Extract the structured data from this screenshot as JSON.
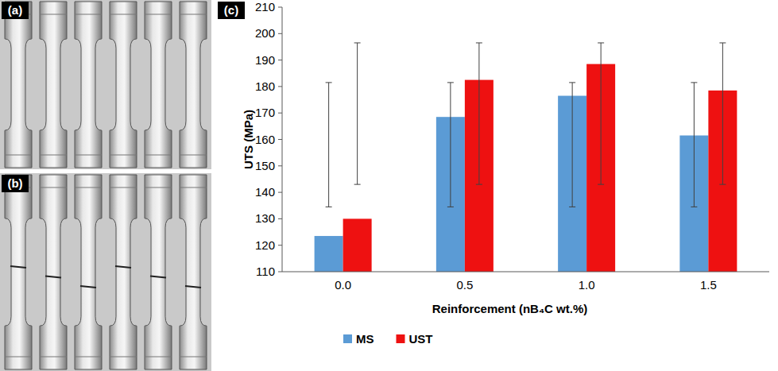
{
  "panel_labels": [
    "(a)",
    "(b)",
    "(c)"
  ],
  "chart_data": {
    "type": "bar",
    "x_label": "Reinforcement (nB₄C wt.%)",
    "y_label": "UTS (MPa)",
    "categories": [
      "0.0",
      "0.5",
      "1.0",
      "1.5"
    ],
    "series": [
      {
        "name": "MS",
        "color": "#5b9bd5",
        "values": [
          123.5,
          168.5,
          176.5,
          161.5
        ],
        "error_low": [
          134.5,
          134.5,
          134.5,
          134.5
        ],
        "error_high": [
          181.5,
          181.5,
          181.5,
          181.5
        ]
      },
      {
        "name": "UST",
        "color": "#ee1111",
        "values": [
          130,
          182.5,
          188.5,
          178.5
        ],
        "error_low": [
          143,
          143,
          143,
          143
        ],
        "error_high": [
          196.5,
          196.5,
          196.5,
          196.5
        ]
      }
    ],
    "ylim": [
      110,
      210
    ],
    "yticks": [
      110,
      120,
      130,
      140,
      150,
      160,
      170,
      180,
      190,
      200,
      210
    ],
    "grid": false,
    "legend": "bottom"
  }
}
